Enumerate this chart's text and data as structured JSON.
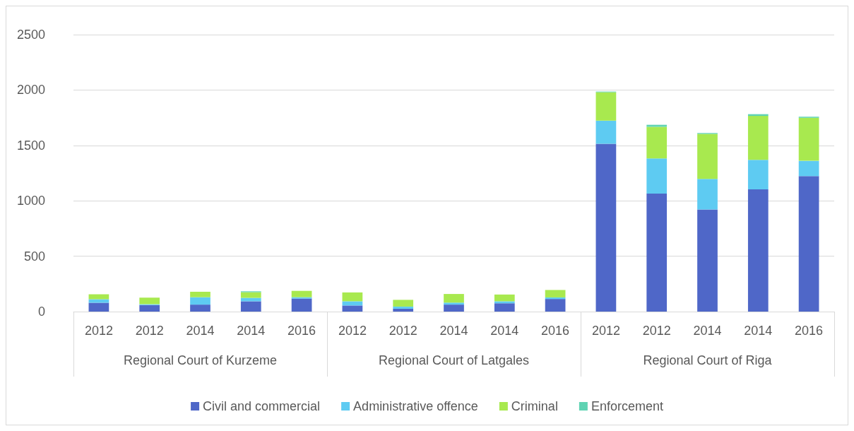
{
  "chart_data": {
    "type": "bar",
    "stacked": true,
    "categories": [
      "2012",
      "2012",
      "2014",
      "2014",
      "2016",
      "2012",
      "2012",
      "2014",
      "2014",
      "2016",
      "2012",
      "2012",
      "2014",
      "2014",
      "2016"
    ],
    "annotations": [
      "Regional Court of Kurzeme",
      "Regional Court of Latgales",
      "Regional Court of Riga"
    ],
    "series": [
      {
        "name": "Civil and commercial",
        "color": "#4f67c8",
        "values": [
          80,
          59,
          63,
          93,
          118,
          55,
          26,
          63,
          75,
          114,
          1514,
          1065,
          922,
          1104,
          1223
        ]
      },
      {
        "name": "Administrative offence",
        "color": "#5ecbf2",
        "values": [
          31,
          8,
          67,
          31,
          12,
          38,
          19,
          18,
          18,
          14,
          209,
          317,
          276,
          266,
          138
        ]
      },
      {
        "name": "Criminal",
        "color": "#a8e94f",
        "values": [
          45,
          59,
          49,
          51,
          57,
          80,
          61,
          78,
          61,
          67,
          257,
          286,
          406,
          396,
          388
        ]
      },
      {
        "name": "Enforcement",
        "color": "#5fd3b3",
        "values": [
          null,
          null,
          null,
          8,
          null,
          null,
          null,
          null,
          null,
          null,
          6,
          18,
          8,
          16,
          10
        ]
      }
    ],
    "ylim": [
      0,
      2500
    ],
    "yticks": [
      0,
      500,
      1000,
      1500,
      2000,
      2500
    ],
    "grid": "y",
    "legend": "bottom"
  }
}
